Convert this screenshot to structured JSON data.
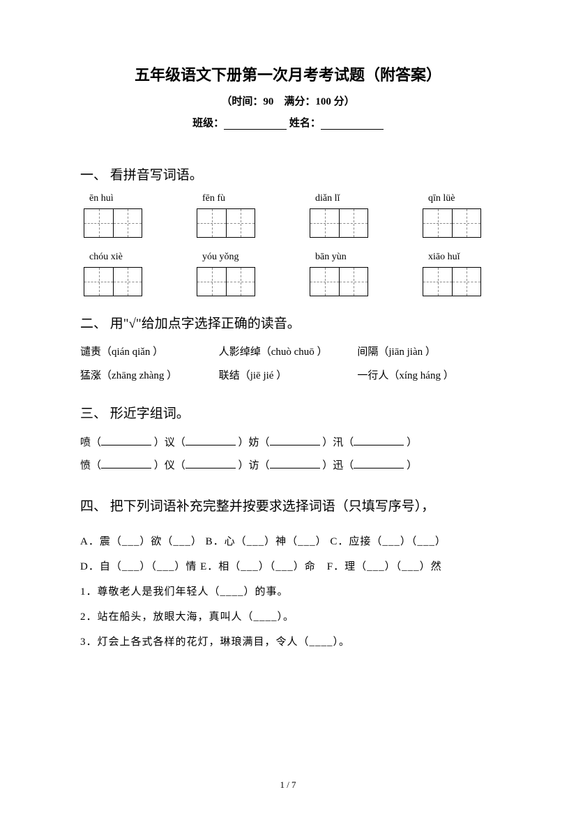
{
  "header": {
    "title": "五年级语文下册第一次月考考试题（附答案）",
    "subtitle": "（时间：90　满分：100 分）",
    "class_label": "班级：",
    "name_label": "姓名："
  },
  "section1": {
    "header": "一、 看拼音写词语。",
    "pinyin_row1": [
      "ēn huì",
      "fēn fù",
      "diǎn lǐ",
      "qīn lüè"
    ],
    "pinyin_row2": [
      "chóu xiè",
      "yóu yǒng",
      "bān yùn",
      "xiāo huǐ"
    ]
  },
  "section2": {
    "header": "二、 用\"√\"给加点字选择正确的读音。",
    "items_row1": [
      {
        "prefix": "谴",
        "dot": "责",
        "reading": "（qián qiǎn ）"
      },
      {
        "prefix": "人影绰",
        "dot": "绰",
        "reading": "（chuò chuō ）"
      },
      {
        "prefix": "间",
        "dot": "隔",
        "reading": "（jiān jiàn ）"
      }
    ],
    "items_row2": [
      {
        "prefix": "猛",
        "dot": "涨",
        "reading": "（zhāng zhàng ）"
      },
      {
        "prefix": "联",
        "dot": "结",
        "reading": "（jiē jié ）"
      },
      {
        "prefix": "一",
        "dot": "行",
        "suffix": "人",
        "reading": "（xíng háng ）"
      }
    ]
  },
  "section3": {
    "header": "三、 形近字组词。",
    "line1": [
      "喷（",
      "）议（",
      "）妨（",
      "）汛（",
      "）"
    ],
    "line2": [
      "愤（",
      "）仪（",
      "）访（",
      "）迅（",
      "）"
    ]
  },
  "section4": {
    "header": "四、 把下列词语补充完整并按要求选择词语（只填写序号），",
    "options_line1": "A．震（___）欲（___） B．心（___）神（___） C．应接（___）（___）",
    "options_line2": "D．自（___）（___）情 E．相（___）（___）命　F．理（___）（___）然",
    "q1": "1．尊敬老人是我们年轻人（____）的事。",
    "q2": "2．站在船头，放眼大海，真叫人（____）。",
    "q3": "3．灯会上各式各样的花灯，琳琅满目，令人（____）。"
  },
  "footer": {
    "page": "1 / 7"
  }
}
